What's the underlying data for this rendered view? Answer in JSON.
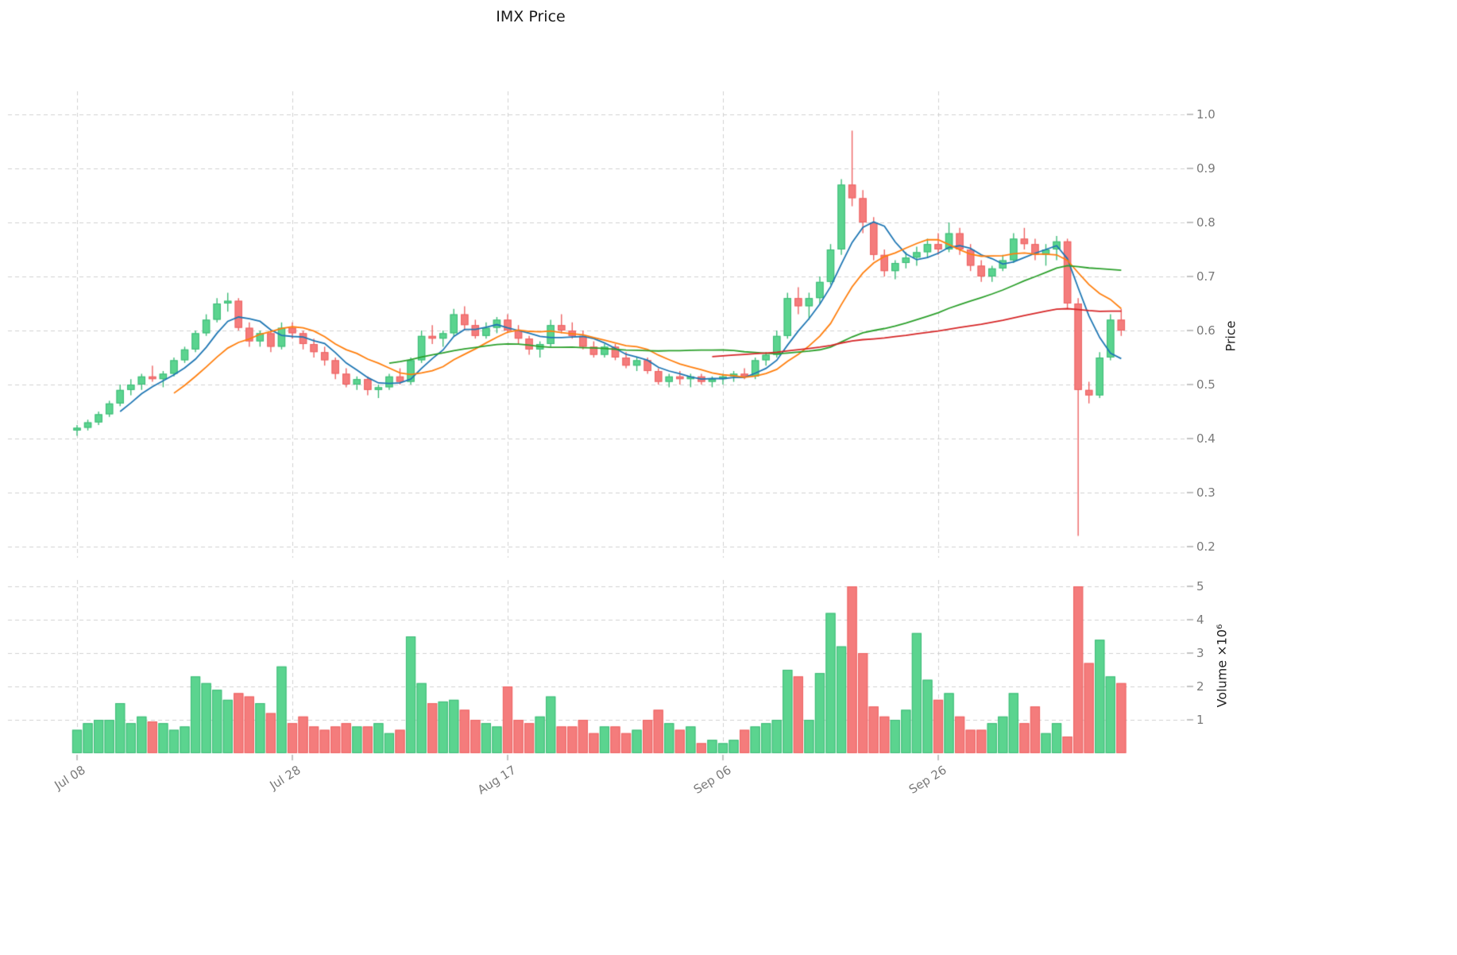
{
  "title": "IMX Price",
  "axes": {
    "price_label": "Price",
    "volume_label": "Volume ×10⁶",
    "price_tick_labels": [
      "1.0",
      "0.9",
      "0.8",
      "0.7",
      "0.6",
      "0.5",
      "0.4",
      "0.3",
      "0.2"
    ],
    "volume_tick_labels": [
      "5",
      "4",
      "3",
      "2",
      "1"
    ]
  },
  "chart_data": {
    "type": "candlestick",
    "title": "IMX Price",
    "ylabel": "Price",
    "volume_ylabel": "Volume ×10⁶",
    "price_axis_ticks": [
      1.0,
      0.9,
      0.8,
      0.7,
      0.6,
      0.5,
      0.4,
      0.3,
      0.2
    ],
    "volume_axis_ticks_millions": [
      5,
      4,
      3,
      2,
      1
    ],
    "price_range": [
      0.2,
      1.0
    ],
    "volume_range_millions": [
      0,
      5
    ],
    "x_ticks": [
      {
        "label": "Jul 08",
        "day": 0
      },
      {
        "label": "Jul 28",
        "day": 20
      },
      {
        "label": "Aug 17",
        "day": 40
      },
      {
        "label": "Sep 06",
        "day": 60
      },
      {
        "label": "Sep 26",
        "day": 80
      }
    ],
    "grid": true,
    "legend": "none",
    "moving_average_windows": [
      5,
      10,
      30,
      60
    ],
    "colors": {
      "up": "#5bd48f",
      "up_edge": "#3dbb77",
      "down": "#f47c7c",
      "down_edge": "#ee6363",
      "ma": [
        "#1f77b4",
        "#ff7f0e",
        "#2ca02c",
        "#d62728"
      ],
      "grid": "#d0d0d0",
      "tick_mark": "#9a9a9a",
      "tick_text": "#7a7a7a"
    },
    "ohlcv_note": "rows are [open, high, low, close, volume_millions], one trading day per row starting Jul 08",
    "ohlcv": [
      [
        0.415,
        0.425,
        0.405,
        0.42,
        0.7
      ],
      [
        0.42,
        0.435,
        0.415,
        0.43,
        0.9
      ],
      [
        0.43,
        0.45,
        0.425,
        0.445,
        1.0
      ],
      [
        0.445,
        0.47,
        0.44,
        0.465,
        1.0
      ],
      [
        0.465,
        0.5,
        0.46,
        0.49,
        1.5
      ],
      [
        0.49,
        0.51,
        0.48,
        0.5,
        0.9
      ],
      [
        0.5,
        0.52,
        0.49,
        0.515,
        1.1
      ],
      [
        0.515,
        0.535,
        0.505,
        0.51,
        0.95
      ],
      [
        0.51,
        0.525,
        0.495,
        0.52,
        0.9
      ],
      [
        0.52,
        0.55,
        0.515,
        0.545,
        0.7
      ],
      [
        0.545,
        0.57,
        0.54,
        0.565,
        0.8
      ],
      [
        0.565,
        0.6,
        0.56,
        0.595,
        2.3
      ],
      [
        0.595,
        0.63,
        0.59,
        0.62,
        2.1
      ],
      [
        0.62,
        0.66,
        0.615,
        0.65,
        1.9
      ],
      [
        0.65,
        0.67,
        0.635,
        0.655,
        1.6
      ],
      [
        0.655,
        0.66,
        0.6,
        0.605,
        1.8
      ],
      [
        0.605,
        0.615,
        0.57,
        0.58,
        1.7
      ],
      [
        0.58,
        0.6,
        0.57,
        0.595,
        1.5
      ],
      [
        0.595,
        0.6,
        0.56,
        0.57,
        1.2
      ],
      [
        0.57,
        0.615,
        0.565,
        0.605,
        2.6
      ],
      [
        0.605,
        0.615,
        0.585,
        0.595,
        0.9
      ],
      [
        0.595,
        0.6,
        0.565,
        0.575,
        1.1
      ],
      [
        0.575,
        0.585,
        0.55,
        0.56,
        0.8
      ],
      [
        0.56,
        0.57,
        0.535,
        0.545,
        0.7
      ],
      [
        0.545,
        0.55,
        0.51,
        0.52,
        0.8
      ],
      [
        0.52,
        0.53,
        0.495,
        0.5,
        0.9
      ],
      [
        0.5,
        0.515,
        0.49,
        0.51,
        0.8
      ],
      [
        0.51,
        0.515,
        0.48,
        0.49,
        0.8
      ],
      [
        0.49,
        0.5,
        0.475,
        0.495,
        0.9
      ],
      [
        0.495,
        0.52,
        0.49,
        0.515,
        0.6
      ],
      [
        0.515,
        0.53,
        0.5,
        0.505,
        0.7
      ],
      [
        0.505,
        0.55,
        0.5,
        0.545,
        3.5
      ],
      [
        0.545,
        0.6,
        0.54,
        0.59,
        2.1
      ],
      [
        0.59,
        0.61,
        0.575,
        0.585,
        1.5
      ],
      [
        0.585,
        0.6,
        0.57,
        0.595,
        1.55
      ],
      [
        0.595,
        0.64,
        0.59,
        0.63,
        1.6
      ],
      [
        0.63,
        0.645,
        0.6,
        0.61,
        1.3
      ],
      [
        0.61,
        0.62,
        0.585,
        0.59,
        1.0
      ],
      [
        0.59,
        0.615,
        0.585,
        0.605,
        0.9
      ],
      [
        0.605,
        0.625,
        0.595,
        0.62,
        0.8
      ],
      [
        0.62,
        0.63,
        0.595,
        0.6,
        2.0
      ],
      [
        0.6,
        0.61,
        0.575,
        0.585,
        1.0
      ],
      [
        0.585,
        0.59,
        0.555,
        0.565,
        0.9
      ],
      [
        0.565,
        0.58,
        0.55,
        0.575,
        1.1
      ],
      [
        0.575,
        0.62,
        0.57,
        0.61,
        1.7
      ],
      [
        0.61,
        0.63,
        0.595,
        0.6,
        0.8
      ],
      [
        0.6,
        0.615,
        0.585,
        0.59,
        0.8
      ],
      [
        0.59,
        0.6,
        0.565,
        0.57,
        1.0
      ],
      [
        0.57,
        0.58,
        0.55,
        0.555,
        0.6
      ],
      [
        0.555,
        0.575,
        0.55,
        0.57,
        0.8
      ],
      [
        0.57,
        0.575,
        0.545,
        0.55,
        0.8
      ],
      [
        0.55,
        0.56,
        0.53,
        0.535,
        0.6
      ],
      [
        0.535,
        0.55,
        0.525,
        0.545,
        0.7
      ],
      [
        0.545,
        0.55,
        0.52,
        0.525,
        1.0
      ],
      [
        0.525,
        0.53,
        0.5,
        0.505,
        1.3
      ],
      [
        0.505,
        0.52,
        0.495,
        0.515,
        0.9
      ],
      [
        0.515,
        0.525,
        0.5,
        0.51,
        0.7
      ],
      [
        0.51,
        0.52,
        0.495,
        0.515,
        0.8
      ],
      [
        0.515,
        0.52,
        0.5,
        0.505,
        0.3
      ],
      [
        0.505,
        0.515,
        0.495,
        0.51,
        0.4
      ],
      [
        0.51,
        0.52,
        0.5,
        0.515,
        0.3
      ],
      [
        0.515,
        0.525,
        0.505,
        0.52,
        0.4
      ],
      [
        0.52,
        0.53,
        0.51,
        0.515,
        0.7
      ],
      [
        0.515,
        0.55,
        0.51,
        0.545,
        0.8
      ],
      [
        0.545,
        0.56,
        0.535,
        0.555,
        0.9
      ],
      [
        0.555,
        0.6,
        0.55,
        0.59,
        1.0
      ],
      [
        0.59,
        0.67,
        0.585,
        0.66,
        2.5
      ],
      [
        0.66,
        0.68,
        0.63,
        0.645,
        2.3
      ],
      [
        0.645,
        0.67,
        0.62,
        0.66,
        1.0
      ],
      [
        0.66,
        0.7,
        0.65,
        0.69,
        2.4
      ],
      [
        0.69,
        0.76,
        0.685,
        0.75,
        4.2
      ],
      [
        0.75,
        0.88,
        0.74,
        0.87,
        3.2
      ],
      [
        0.87,
        0.97,
        0.83,
        0.845,
        5.0
      ],
      [
        0.845,
        0.86,
        0.78,
        0.8,
        3.0
      ],
      [
        0.8,
        0.81,
        0.73,
        0.74,
        1.4
      ],
      [
        0.74,
        0.75,
        0.7,
        0.71,
        1.1
      ],
      [
        0.71,
        0.73,
        0.695,
        0.725,
        1.0
      ],
      [
        0.725,
        0.745,
        0.715,
        0.735,
        1.3
      ],
      [
        0.735,
        0.755,
        0.72,
        0.745,
        3.6
      ],
      [
        0.745,
        0.77,
        0.735,
        0.76,
        2.2
      ],
      [
        0.76,
        0.78,
        0.74,
        0.75,
        1.6
      ],
      [
        0.75,
        0.8,
        0.745,
        0.78,
        1.8
      ],
      [
        0.78,
        0.79,
        0.74,
        0.75,
        1.1
      ],
      [
        0.75,
        0.76,
        0.71,
        0.72,
        0.7
      ],
      [
        0.72,
        0.73,
        0.69,
        0.7,
        0.7
      ],
      [
        0.7,
        0.72,
        0.69,
        0.715,
        0.9
      ],
      [
        0.715,
        0.74,
        0.71,
        0.73,
        1.1
      ],
      [
        0.73,
        0.78,
        0.725,
        0.77,
        1.8
      ],
      [
        0.77,
        0.79,
        0.75,
        0.76,
        0.9
      ],
      [
        0.76,
        0.77,
        0.73,
        0.74,
        1.4
      ],
      [
        0.74,
        0.76,
        0.72,
        0.75,
        0.6
      ],
      [
        0.75,
        0.775,
        0.73,
        0.765,
        0.9
      ],
      [
        0.765,
        0.77,
        0.64,
        0.65,
        0.5
      ],
      [
        0.65,
        0.66,
        0.22,
        0.49,
        5.0
      ],
      [
        0.49,
        0.505,
        0.465,
        0.48,
        2.7
      ],
      [
        0.48,
        0.56,
        0.475,
        0.55,
        3.4
      ],
      [
        0.55,
        0.63,
        0.545,
        0.62,
        2.3
      ],
      [
        0.62,
        0.64,
        0.59,
        0.6,
        2.1
      ]
    ]
  }
}
